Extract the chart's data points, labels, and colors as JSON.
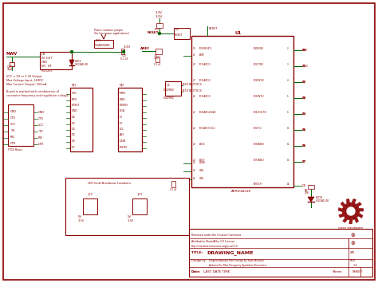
{
  "bg_color": "#f5f5f5",
  "border_color": "#8b1a1a",
  "schematic_bg": "#ffffff",
  "cc": "#8b0000",
  "wc": "#006400",
  "gc": "#006400",
  "drawing_name": "DRAWING_NAME",
  "date_value": "LAST DATE TIME",
  "sheet_value": "SHEET",
  "rev_value": "1.4",
  "cc_line1": "Released under the Creative Commons",
  "cc_line2": "Attribution ShareAlike 3.0 License",
  "cc_line3": "http://creativecommons.org/p-sa/3.0"
}
